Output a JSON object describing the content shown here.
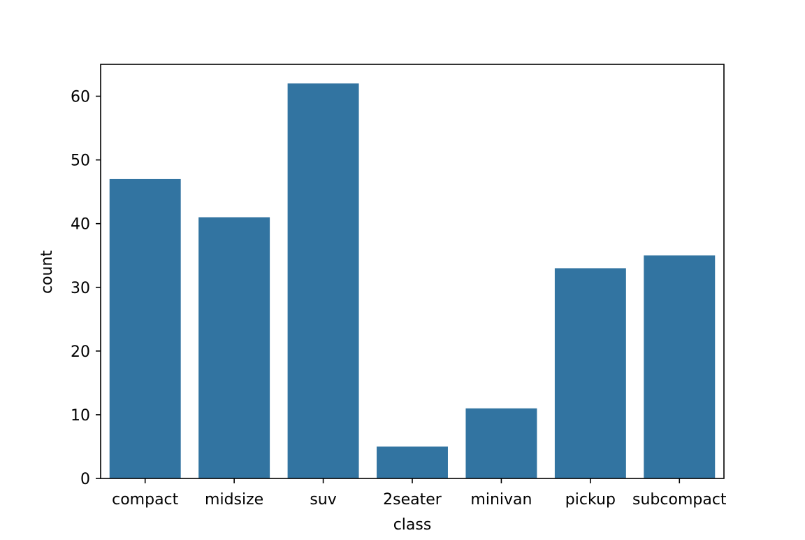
{
  "chart_data": {
    "type": "bar",
    "categories": [
      "compact",
      "midsize",
      "suv",
      "2seater",
      "minivan",
      "pickup",
      "subcompact"
    ],
    "values": [
      47,
      41,
      62,
      5,
      11,
      33,
      35
    ],
    "title": "",
    "xlabel": "class",
    "ylabel": "count",
    "ylim": [
      0,
      65
    ],
    "yticks": [
      0,
      10,
      20,
      30,
      40,
      50,
      60
    ],
    "grid": false,
    "bar_color": "#3274a1"
  }
}
